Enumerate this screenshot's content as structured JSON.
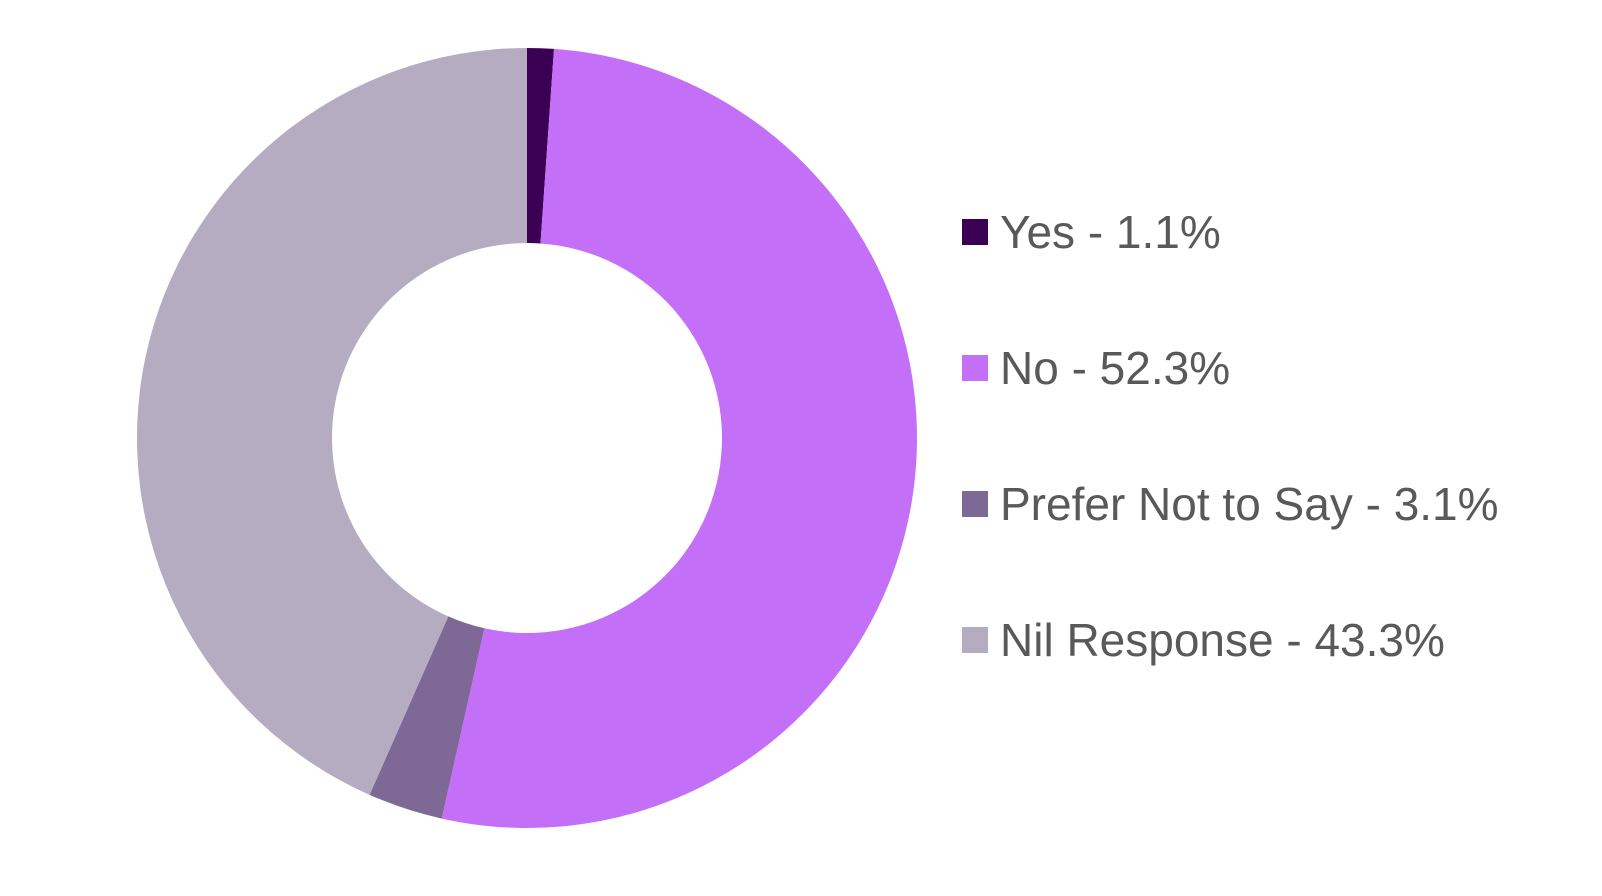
{
  "chart_data": {
    "type": "pie",
    "donut": true,
    "title": "",
    "legend_position": "right",
    "slices": [
      {
        "label": "Yes - 1.1%",
        "value": 1.1,
        "color": "#3b0054"
      },
      {
        "label": "No - 52.3%",
        "value": 52.3,
        "color": "#c46ff8"
      },
      {
        "label": "Prefer Not to Say - 3.1%",
        "value": 3.1,
        "color": "#7e6895"
      },
      {
        "label": "Nil Response - 43.3%",
        "value": 43.3,
        "color": "#b5acc2"
      }
    ]
  }
}
